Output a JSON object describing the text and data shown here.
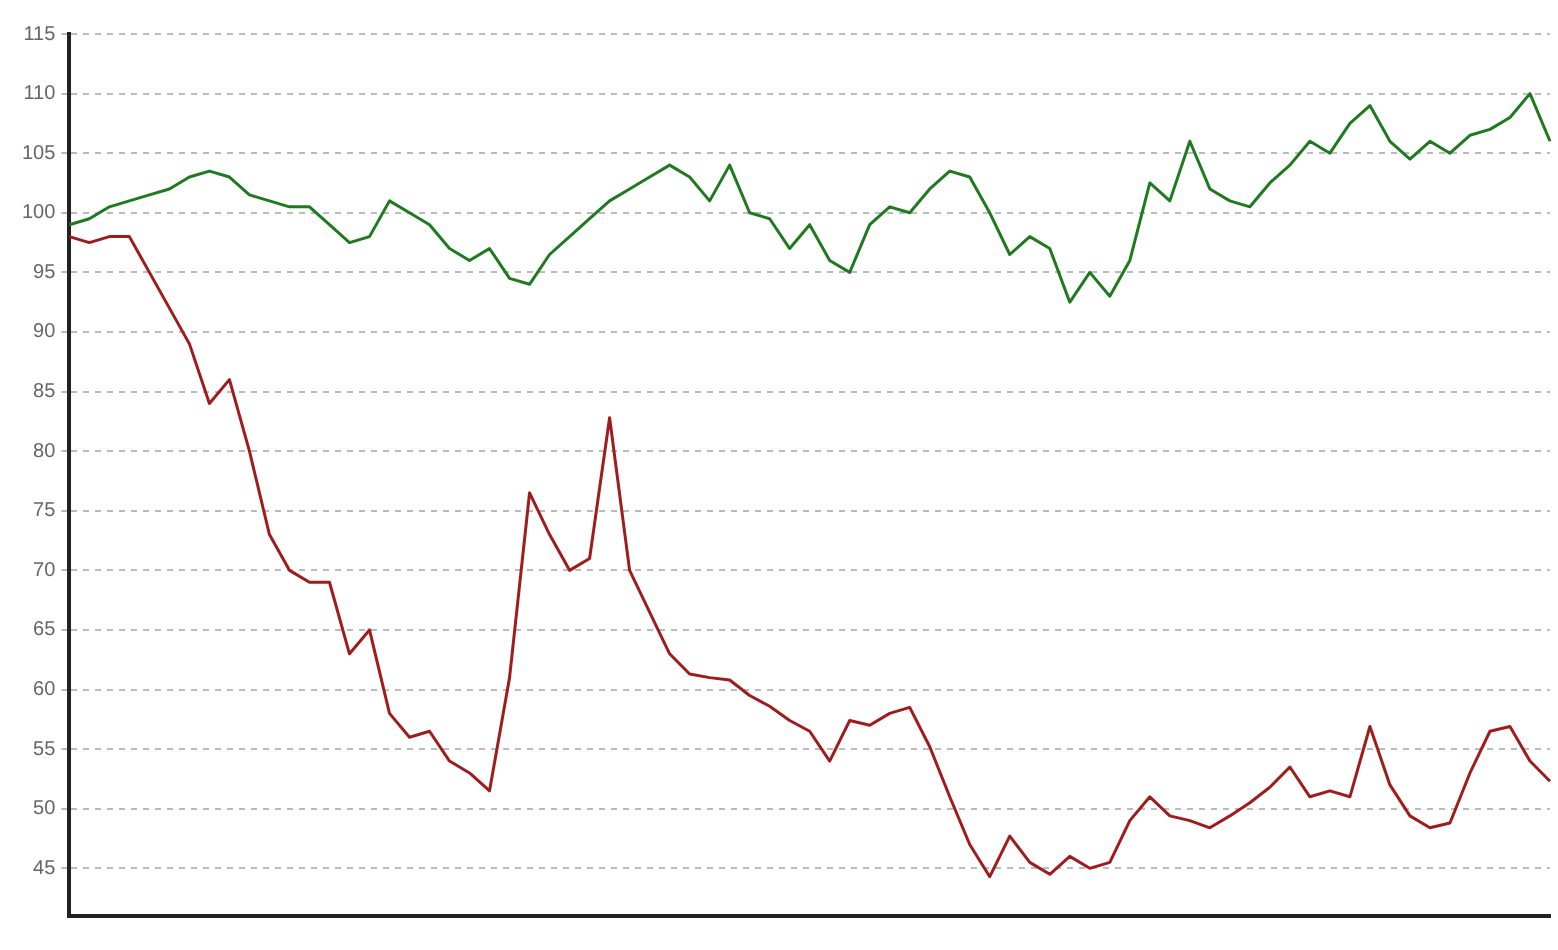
{
  "chart_data": {
    "type": "line",
    "categories": [
      null,
      null,
      null,
      null,
      null,
      null,
      null,
      null,
      null,
      null,
      null,
      null,
      null,
      null,
      null,
      null,
      null,
      null,
      null,
      null,
      null,
      null,
      null,
      null,
      null,
      null,
      null,
      null,
      null,
      null,
      null,
      null,
      null,
      null,
      null,
      null,
      null,
      null,
      null,
      null,
      null,
      null,
      null,
      null,
      null,
      null,
      null,
      null,
      null,
      null,
      null,
      null,
      null,
      null,
      null,
      null,
      null,
      null,
      null,
      null,
      null,
      null,
      null,
      null,
      null,
      null,
      null,
      null,
      null,
      null,
      null,
      null,
      null,
      null,
      null
    ],
    "series": [
      {
        "color": "#1f7a1f",
        "values": [
          99,
          99.5,
          100.5,
          101,
          101.5,
          102,
          103,
          103.5,
          103,
          101.5,
          101,
          100.5,
          100.5,
          99,
          97.5,
          98,
          101,
          100,
          99,
          97,
          96,
          97,
          94.5,
          94,
          96.5,
          98,
          99.5,
          101,
          102,
          103,
          104,
          103,
          101,
          104,
          100,
          99.5,
          97,
          99,
          96,
          95,
          99,
          100.5,
          100,
          102,
          103.5,
          103,
          100,
          96.5,
          98,
          97,
          92.5,
          95,
          93,
          96,
          102.5,
          101,
          106,
          102,
          101,
          100.5,
          102.5,
          104,
          106,
          105,
          107.5,
          109,
          106,
          104.5,
          106,
          105,
          106.5,
          107,
          108,
          110,
          106
        ]
      },
      {
        "color": "#a01c1c",
        "values": [
          98,
          97.5,
          98,
          98,
          95,
          92,
          89,
          84,
          86,
          80,
          73,
          70,
          69,
          69,
          63,
          65,
          58,
          56,
          56.5,
          54,
          53,
          51.5,
          61,
          76.5,
          73,
          70,
          71,
          82.8,
          70,
          66.5,
          63,
          61.3,
          61,
          60.8,
          59.5,
          58.6,
          57.4,
          56.5,
          54,
          57.4,
          57,
          58,
          58.5,
          55.2,
          51,
          47,
          44.3,
          47.7,
          45.5,
          44.5,
          46,
          45,
          45.5,
          49,
          51,
          49.4,
          49,
          48.4,
          49.4,
          50.5,
          51.8,
          53.5,
          51,
          51.5,
          51,
          56.9,
          52,
          49.4,
          48.4,
          48.8,
          53,
          56.5,
          56.9,
          54,
          52.3
        ]
      }
    ],
    "ylim": [
      41,
      115
    ],
    "yticks": [
      45,
      50,
      55,
      60,
      65,
      70,
      75,
      80,
      85,
      90,
      95,
      100,
      105,
      110,
      115
    ],
    "grid": "y",
    "tick_labels": "y",
    "marker": "none",
    "line_style": "solid",
    "legend": false
  }
}
